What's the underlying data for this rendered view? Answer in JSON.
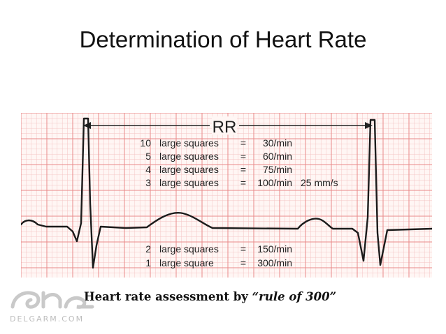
{
  "slide": {
    "title": "Determination of Heart Rate"
  },
  "ecg": {
    "interval_label": "RR",
    "speed": "25 mm/s",
    "table_top": [
      {
        "count": "10",
        "unit": "large squares",
        "eq": "=",
        "rate": "30/min"
      },
      {
        "count": "5",
        "unit": "large squares",
        "eq": "=",
        "rate": "60/min"
      },
      {
        "count": "4",
        "unit": "large squares",
        "eq": "=",
        "rate": "75/min"
      },
      {
        "count": "3",
        "unit": "large squares",
        "eq": "=",
        "rate": "100/min"
      }
    ],
    "table_bottom": [
      {
        "count": "2",
        "unit": "large squares",
        "eq": "=",
        "rate": "150/min"
      },
      {
        "count": "1",
        "unit": "large square",
        "eq": "=",
        "rate": "300/min"
      }
    ],
    "grid_color": "#e88a8a",
    "minor_grid_color": "#f4c4c4",
    "paper_color": "#fff6f4"
  },
  "caption": {
    "text": "Heart rate assessment by",
    "emphasis": "“rule of 300”"
  },
  "watermark": {
    "text": "DELGARM.COM"
  }
}
